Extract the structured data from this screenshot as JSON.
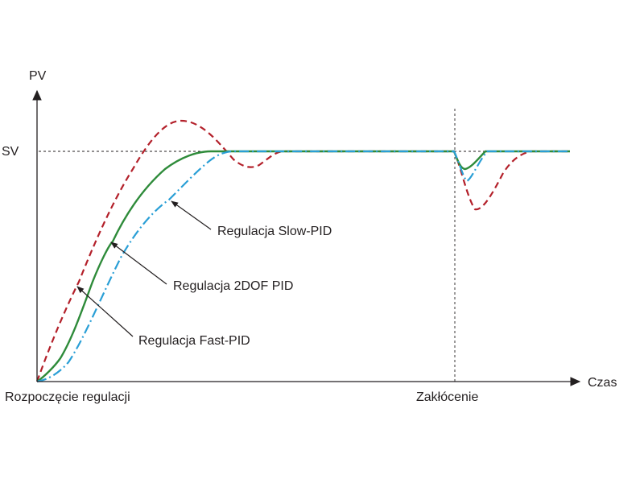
{
  "axis_labels": {
    "y": "PV",
    "x": "Czas",
    "setpoint": "SV",
    "start": "Rozpoczęcie regulacji",
    "disturbance": "Zakłócenie"
  },
  "annotations": {
    "slow": "Regulacja Slow-PID",
    "twodof": "Regulacja 2DOF PID",
    "fast": "Regulacja Fast-PID"
  },
  "series_colors": {
    "fast": "#b3202a",
    "twodof": "#2e8b3a",
    "slow": "#2a9fd6"
  }
}
